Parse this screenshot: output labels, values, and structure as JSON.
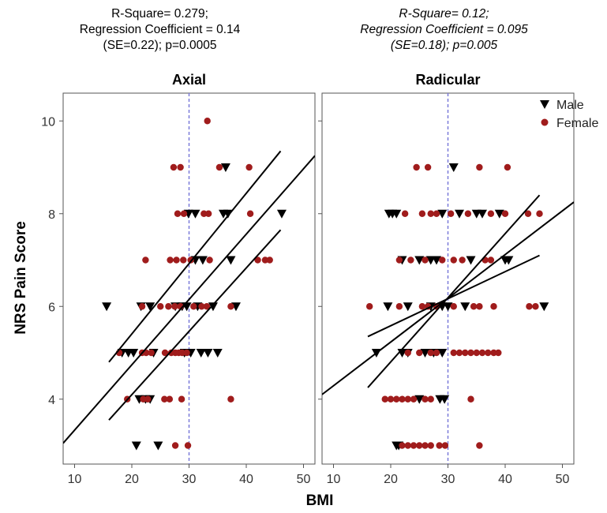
{
  "panels_stats": [
    {
      "lines": [
        "R-Square= 0.279;",
        "Regression Coefficient = 0.14",
        "(SE=0.22); p=0.0005"
      ],
      "italic": false
    },
    {
      "lines": [
        "R-Square= 0.12;",
        "Regression Coefficient = 0.095",
        "(SE=0.18); p=0.005"
      ],
      "italic": true
    }
  ],
  "chart_data": [
    {
      "type": "scatter",
      "title": "Axial",
      "xlabel": "BMI",
      "ylabel": "NRS Pain Score",
      "xlim": [
        8,
        52
      ],
      "ylim": [
        2.6,
        10.6
      ],
      "xticks": [
        10,
        20,
        30,
        40,
        50
      ],
      "yticks": [
        4,
        6,
        8,
        10
      ],
      "reference_line_x": 30,
      "legend": "none",
      "series": [
        {
          "name": "Male",
          "marker": "triangle-down",
          "color": "#000000",
          "points": [
            [
              20.8,
              3
            ],
            [
              24.6,
              3
            ],
            [
              18.3,
              5
            ],
            [
              19.4,
              5
            ],
            [
              20.3,
              5
            ],
            [
              23.8,
              5
            ],
            [
              29.2,
              5
            ],
            [
              30.3,
              5
            ],
            [
              32.1,
              5
            ],
            [
              33.3,
              5
            ],
            [
              35.0,
              5
            ],
            [
              15.6,
              6
            ],
            [
              21.6,
              6
            ],
            [
              23.2,
              6
            ],
            [
              27.6,
              6
            ],
            [
              28.8,
              6
            ],
            [
              29.6,
              6
            ],
            [
              31.5,
              6
            ],
            [
              34.2,
              6
            ],
            [
              38.2,
              6
            ],
            [
              21.3,
              4
            ],
            [
              22.4,
              4
            ],
            [
              23.2,
              4
            ],
            [
              31.1,
              7
            ],
            [
              32.4,
              7
            ],
            [
              37.3,
              7
            ],
            [
              29.9,
              8
            ],
            [
              31.1,
              8
            ],
            [
              36.0,
              8
            ],
            [
              36.8,
              8
            ],
            [
              46.2,
              8
            ],
            [
              36.4,
              9
            ]
          ]
        },
        {
          "name": "Female",
          "marker": "circle",
          "color": "#a01c1c",
          "points": [
            [
              27.6,
              3
            ],
            [
              29.8,
              3
            ],
            [
              17.8,
              5
            ],
            [
              21.8,
              5
            ],
            [
              22.5,
              5
            ],
            [
              23.4,
              5
            ],
            [
              25.8,
              5
            ],
            [
              26.9,
              5
            ],
            [
              27.6,
              5
            ],
            [
              28.2,
              5
            ],
            [
              28.8,
              5
            ],
            [
              29.6,
              5
            ],
            [
              19.2,
              4
            ],
            [
              22.0,
              4
            ],
            [
              22.8,
              4
            ],
            [
              25.7,
              4
            ],
            [
              26.6,
              4
            ],
            [
              28.7,
              4
            ],
            [
              37.3,
              4
            ],
            [
              21.8,
              6
            ],
            [
              25.0,
              6
            ],
            [
              26.4,
              6
            ],
            [
              27.5,
              6
            ],
            [
              28.5,
              6
            ],
            [
              30.8,
              6
            ],
            [
              32.2,
              6
            ],
            [
              33.1,
              6
            ],
            [
              37.3,
              6
            ],
            [
              22.4,
              7
            ],
            [
              26.7,
              7
            ],
            [
              27.8,
              7
            ],
            [
              29.0,
              7
            ],
            [
              30.3,
              7
            ],
            [
              33.6,
              7
            ],
            [
              42.0,
              7
            ],
            [
              43.3,
              7
            ],
            [
              44.1,
              7
            ],
            [
              28.0,
              8
            ],
            [
              29.1,
              8
            ],
            [
              32.6,
              8
            ],
            [
              33.4,
              8
            ],
            [
              40.7,
              8
            ],
            [
              27.3,
              9
            ],
            [
              28.5,
              9
            ],
            [
              35.3,
              9
            ],
            [
              40.5,
              9
            ],
            [
              33.2,
              10
            ]
          ]
        }
      ],
      "fit_lines": [
        {
          "label": "regression",
          "x": [
            8,
            52
          ],
          "y": [
            3.05,
            9.25
          ]
        },
        {
          "label": "ci_lower",
          "x": [
            16,
            46
          ],
          "y": [
            3.55,
            7.65
          ]
        },
        {
          "label": "ci_upper",
          "x": [
            16,
            46
          ],
          "y": [
            4.8,
            9.35
          ]
        }
      ]
    },
    {
      "type": "scatter",
      "title": "Radicular",
      "xlabel": "BMI",
      "ylabel": "",
      "xlim": [
        8,
        52
      ],
      "ylim": [
        2.6,
        10.6
      ],
      "xticks": [
        10,
        20,
        30,
        40,
        50
      ],
      "yticks": [
        4,
        6,
        8,
        10
      ],
      "reference_line_x": 30,
      "legend": "top-right",
      "series": [
        {
          "name": "Male",
          "marker": "triangle-down",
          "color": "#000000",
          "points": [
            [
              21.4,
              3
            ],
            [
              21.0,
              3
            ],
            [
              28.6,
              4
            ],
            [
              29.4,
              4
            ],
            [
              25.0,
              4
            ],
            [
              17.5,
              5
            ],
            [
              22.0,
              5
            ],
            [
              23.0,
              5
            ],
            [
              26.0,
              5
            ],
            [
              27.5,
              5
            ],
            [
              29.0,
              5
            ],
            [
              19.5,
              6
            ],
            [
              23.0,
              6
            ],
            [
              27.0,
              6
            ],
            [
              29.0,
              6
            ],
            [
              30.0,
              6
            ],
            [
              33.0,
              6
            ],
            [
              46.8,
              6
            ],
            [
              22.0,
              7
            ],
            [
              25.0,
              7
            ],
            [
              27.0,
              7
            ],
            [
              28.0,
              7
            ],
            [
              34.0,
              7
            ],
            [
              40.0,
              7
            ],
            [
              40.6,
              7
            ],
            [
              19.7,
              8
            ],
            [
              20.3,
              8
            ],
            [
              21.0,
              8
            ],
            [
              29.0,
              8
            ],
            [
              32.0,
              8
            ],
            [
              35.0,
              8
            ],
            [
              36.0,
              8
            ],
            [
              39.0,
              8
            ],
            [
              31.0,
              9
            ]
          ]
        },
        {
          "name": "Female",
          "marker": "circle",
          "color": "#a01c1c",
          "points": [
            [
              22.0,
              3
            ],
            [
              23.0,
              3
            ],
            [
              24.0,
              3
            ],
            [
              25.0,
              3
            ],
            [
              26.0,
              3
            ],
            [
              27.0,
              3
            ],
            [
              28.5,
              3
            ],
            [
              29.5,
              3
            ],
            [
              35.5,
              3
            ],
            [
              19.0,
              4
            ],
            [
              20.0,
              4
            ],
            [
              21.0,
              4
            ],
            [
              22.0,
              4
            ],
            [
              23.0,
              4
            ],
            [
              24.0,
              4
            ],
            [
              26.0,
              4
            ],
            [
              27.0,
              4
            ],
            [
              34.0,
              4
            ],
            [
              23.0,
              5
            ],
            [
              25.0,
              5
            ],
            [
              27.0,
              5
            ],
            [
              28.0,
              5
            ],
            [
              31.0,
              5
            ],
            [
              32.0,
              5
            ],
            [
              33.0,
              5
            ],
            [
              34.0,
              5
            ],
            [
              35.0,
              5
            ],
            [
              36.0,
              5
            ],
            [
              37.0,
              5
            ],
            [
              38.0,
              5
            ],
            [
              38.8,
              5
            ],
            [
              16.3,
              6
            ],
            [
              21.5,
              6
            ],
            [
              25.5,
              6
            ],
            [
              26.5,
              6
            ],
            [
              28.0,
              6
            ],
            [
              31.0,
              6
            ],
            [
              34.5,
              6
            ],
            [
              35.5,
              6
            ],
            [
              38.0,
              6
            ],
            [
              44.2,
              6
            ],
            [
              45.3,
              6
            ],
            [
              21.5,
              7
            ],
            [
              23.5,
              7
            ],
            [
              26.0,
              7
            ],
            [
              29.0,
              7
            ],
            [
              31.0,
              7
            ],
            [
              32.5,
              7
            ],
            [
              36.5,
              7
            ],
            [
              37.5,
              7
            ],
            [
              22.5,
              8
            ],
            [
              25.5,
              8
            ],
            [
              27.0,
              8
            ],
            [
              28.0,
              8
            ],
            [
              30.5,
              8
            ],
            [
              33.5,
              8
            ],
            [
              37.5,
              8
            ],
            [
              40.0,
              8
            ],
            [
              44.0,
              8
            ],
            [
              46.0,
              8
            ],
            [
              24.5,
              9
            ],
            [
              26.5,
              9
            ],
            [
              35.5,
              9
            ],
            [
              40.4,
              9
            ]
          ]
        }
      ],
      "fit_lines": [
        {
          "label": "regression",
          "x": [
            8,
            52
          ],
          "y": [
            4.1,
            8.25
          ]
        },
        {
          "label": "ci_lower",
          "x": [
            16,
            46
          ],
          "y": [
            5.35,
            7.1
          ]
        },
        {
          "label": "ci_upper",
          "x": [
            16,
            46
          ],
          "y": [
            4.25,
            8.4
          ]
        }
      ]
    }
  ]
}
